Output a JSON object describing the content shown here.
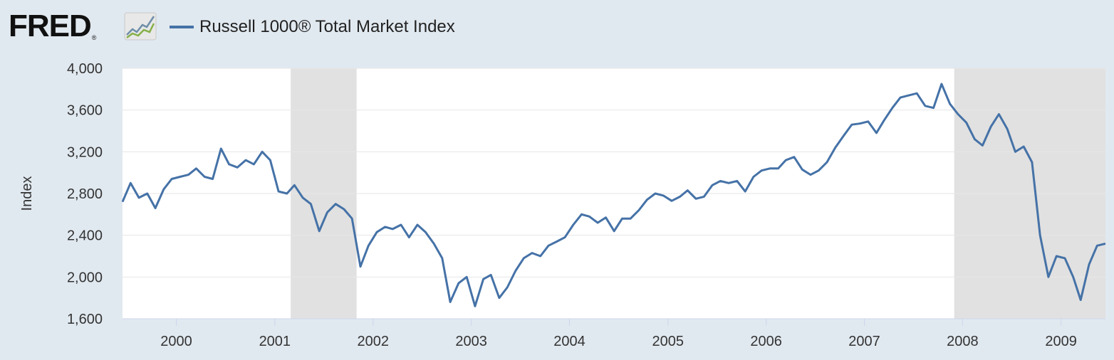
{
  "header": {
    "logo_text": "FRED",
    "logo_mark": "®",
    "logo_icon": "line-graph-icon",
    "legend_label": "Russell 1000® Total Market Index",
    "legend_color": "#4572a7"
  },
  "chart_data": {
    "type": "line",
    "title": "",
    "xlabel": "",
    "ylabel": "Index",
    "xlim": [
      "1999-06-15",
      "2009-06-15"
    ],
    "ylim": [
      1600,
      4000
    ],
    "y_ticks": [
      1600,
      2000,
      2400,
      2800,
      3200,
      3600,
      4000
    ],
    "y_tick_labels": [
      "1,600",
      "2,000",
      "2,400",
      "2,800",
      "3,200",
      "3,600",
      "4,000"
    ],
    "x_ticks": [
      "2000-01-01",
      "2001-01-01",
      "2002-01-01",
      "2003-01-01",
      "2004-01-01",
      "2005-01-01",
      "2006-01-01",
      "2007-01-01",
      "2008-01-01",
      "2009-01-01"
    ],
    "x_tick_labels": [
      "2000",
      "2001",
      "2002",
      "2003",
      "2004",
      "2005",
      "2006",
      "2007",
      "2008",
      "2009"
    ],
    "grid": true,
    "recession_bands": [
      {
        "start": "2001-03-01",
        "end": "2001-11-01"
      },
      {
        "start": "2007-12-01",
        "end": "2009-06-15"
      }
    ],
    "series": [
      {
        "name": "Russell 1000® Total Market Index",
        "color": "#4572a7",
        "points": [
          [
            "1999-06-15",
            2720
          ],
          [
            "1999-07-15",
            2900
          ],
          [
            "1999-08-15",
            2760
          ],
          [
            "1999-09-15",
            2800
          ],
          [
            "1999-10-15",
            2660
          ],
          [
            "1999-11-15",
            2840
          ],
          [
            "1999-12-15",
            2940
          ],
          [
            "2000-01-15",
            2960
          ],
          [
            "2000-02-15",
            2980
          ],
          [
            "2000-03-15",
            3040
          ],
          [
            "2000-04-15",
            2960
          ],
          [
            "2000-05-15",
            2940
          ],
          [
            "2000-06-15",
            3230
          ],
          [
            "2000-07-15",
            3080
          ],
          [
            "2000-08-15",
            3050
          ],
          [
            "2000-09-15",
            3120
          ],
          [
            "2000-10-15",
            3080
          ],
          [
            "2000-11-15",
            3200
          ],
          [
            "2000-12-15",
            3120
          ],
          [
            "2001-01-15",
            2820
          ],
          [
            "2001-02-15",
            2800
          ],
          [
            "2001-03-15",
            2880
          ],
          [
            "2001-04-15",
            2760
          ],
          [
            "2001-05-15",
            2700
          ],
          [
            "2001-06-15",
            2440
          ],
          [
            "2001-07-15",
            2620
          ],
          [
            "2001-08-15",
            2700
          ],
          [
            "2001-09-15",
            2650
          ],
          [
            "2001-10-15",
            2560
          ],
          [
            "2001-11-15",
            2100
          ],
          [
            "2001-12-15",
            2300
          ],
          [
            "2002-01-15",
            2430
          ],
          [
            "2002-02-15",
            2480
          ],
          [
            "2002-03-15",
            2460
          ],
          [
            "2002-04-15",
            2500
          ],
          [
            "2002-05-15",
            2380
          ],
          [
            "2002-06-15",
            2500
          ],
          [
            "2002-07-15",
            2430
          ],
          [
            "2002-08-15",
            2320
          ],
          [
            "2002-09-15",
            2180
          ],
          [
            "2002-10-15",
            1760
          ],
          [
            "2002-11-15",
            1940
          ],
          [
            "2002-12-15",
            2000
          ],
          [
            "2003-01-15",
            1720
          ],
          [
            "2003-02-15",
            1980
          ],
          [
            "2003-03-15",
            2020
          ],
          [
            "2003-04-15",
            1800
          ],
          [
            "2003-05-15",
            1900
          ],
          [
            "2003-06-15",
            2060
          ],
          [
            "2003-07-15",
            2180
          ],
          [
            "2003-08-15",
            2230
          ],
          [
            "2003-09-15",
            2200
          ],
          [
            "2003-10-15",
            2300
          ],
          [
            "2003-11-15",
            2340
          ],
          [
            "2003-12-15",
            2380
          ],
          [
            "2004-01-15",
            2500
          ],
          [
            "2004-02-15",
            2600
          ],
          [
            "2004-03-15",
            2580
          ],
          [
            "2004-04-15",
            2520
          ],
          [
            "2004-05-15",
            2570
          ],
          [
            "2004-06-15",
            2440
          ],
          [
            "2004-07-15",
            2560
          ],
          [
            "2004-08-15",
            2560
          ],
          [
            "2004-09-15",
            2640
          ],
          [
            "2004-10-15",
            2740
          ],
          [
            "2004-11-15",
            2800
          ],
          [
            "2004-12-15",
            2780
          ],
          [
            "2005-01-15",
            2730
          ],
          [
            "2005-02-15",
            2770
          ],
          [
            "2005-03-15",
            2830
          ],
          [
            "2005-04-15",
            2750
          ],
          [
            "2005-05-15",
            2770
          ],
          [
            "2005-06-15",
            2880
          ],
          [
            "2005-07-15",
            2920
          ],
          [
            "2005-08-15",
            2900
          ],
          [
            "2005-09-15",
            2920
          ],
          [
            "2005-10-15",
            2820
          ],
          [
            "2005-11-15",
            2960
          ],
          [
            "2005-12-15",
            3020
          ],
          [
            "2006-01-15",
            3040
          ],
          [
            "2006-02-15",
            3040
          ],
          [
            "2006-03-15",
            3120
          ],
          [
            "2006-04-15",
            3150
          ],
          [
            "2006-05-15",
            3030
          ],
          [
            "2006-06-15",
            2980
          ],
          [
            "2006-07-15",
            3020
          ],
          [
            "2006-08-15",
            3100
          ],
          [
            "2006-09-15",
            3240
          ],
          [
            "2006-10-15",
            3350
          ],
          [
            "2006-11-15",
            3460
          ],
          [
            "2006-12-15",
            3470
          ],
          [
            "2007-01-15",
            3490
          ],
          [
            "2007-02-15",
            3380
          ],
          [
            "2007-03-15",
            3500
          ],
          [
            "2007-04-15",
            3620
          ],
          [
            "2007-05-15",
            3720
          ],
          [
            "2007-06-15",
            3740
          ],
          [
            "2007-07-15",
            3760
          ],
          [
            "2007-08-15",
            3640
          ],
          [
            "2007-09-15",
            3620
          ],
          [
            "2007-10-15",
            3850
          ],
          [
            "2007-11-15",
            3660
          ],
          [
            "2007-12-15",
            3560
          ],
          [
            "2008-01-15",
            3480
          ],
          [
            "2008-02-15",
            3320
          ],
          [
            "2008-03-15",
            3260
          ],
          [
            "2008-04-15",
            3440
          ],
          [
            "2008-05-15",
            3560
          ],
          [
            "2008-06-15",
            3420
          ],
          [
            "2008-07-15",
            3200
          ],
          [
            "2008-08-15",
            3250
          ],
          [
            "2008-09-15",
            3100
          ],
          [
            "2008-10-15",
            2400
          ],
          [
            "2008-11-15",
            2000
          ],
          [
            "2008-12-15",
            2200
          ],
          [
            "2009-01-15",
            2180
          ],
          [
            "2009-02-15",
            2000
          ],
          [
            "2009-03-15",
            1780
          ],
          [
            "2009-04-15",
            2120
          ],
          [
            "2009-05-15",
            2300
          ],
          [
            "2009-06-15",
            2320
          ]
        ]
      }
    ]
  }
}
